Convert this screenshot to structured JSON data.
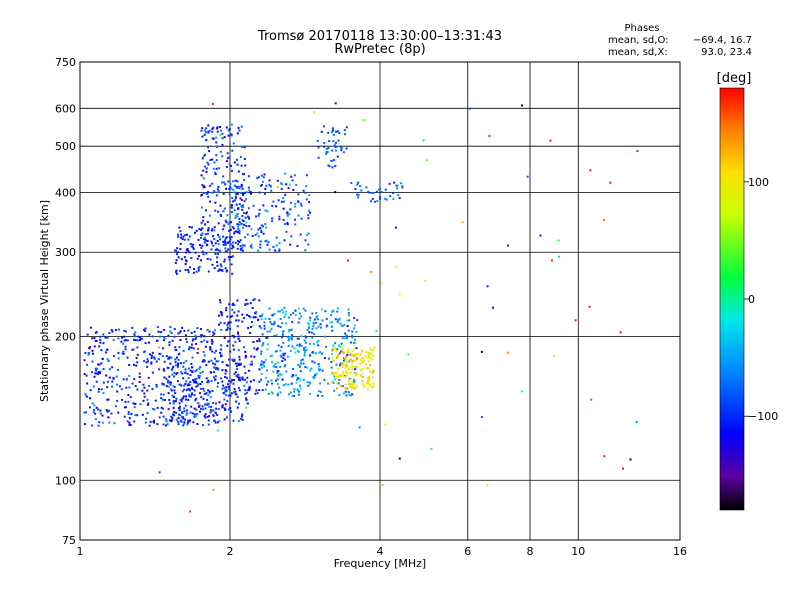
{
  "chart_data": {
    "type": "scatter",
    "title": "Tromsø 20170118 13:30:00–13:31:43",
    "subtitle": "RwPretec (8p)",
    "xlabel": "Frequency [MHz]",
    "ylabel": "Stationary phase Virtual Height [km]",
    "x_scale": "log",
    "y_scale": "log",
    "xlim": [
      1,
      16
    ],
    "ylim": [
      75,
      750
    ],
    "x_ticks": [
      1,
      2,
      4,
      6,
      8,
      10,
      16
    ],
    "x_tick_labels": [
      "1",
      "2",
      "4",
      "6",
      "8",
      "10",
      "16"
    ],
    "y_ticks": [
      75,
      100,
      200,
      300,
      400,
      500,
      600,
      750
    ],
    "y_tick_labels": [
      "75",
      "100",
      "200",
      "300",
      "400",
      "500",
      "600",
      "750"
    ],
    "grid": true,
    "phases_header": "Phases",
    "stats": [
      {
        "label": "mean, sd,O:",
        "values": "−69.4, 16.7"
      },
      {
        "label": "mean, sd,X:",
        "values": "93.0, 23.4"
      }
    ],
    "colorbar": {
      "label": "[deg]",
      "range": [
        -180,
        180
      ],
      "ticks": [
        100,
        0,
        -100
      ],
      "tick_labels": [
        "100",
        "0",
        "−100"
      ]
    },
    "clusters": [
      {
        "fmin": 1.02,
        "fmax": 1.9,
        "hmin": 130,
        "hmax": 210,
        "n": 520,
        "phase": -100,
        "spread": 22
      },
      {
        "fmin": 1.5,
        "fmax": 2.2,
        "hmin": 132,
        "hmax": 178,
        "n": 180,
        "phase": -95,
        "spread": 18
      },
      {
        "fmin": 1.55,
        "fmax": 2.05,
        "hmin": 270,
        "hmax": 340,
        "n": 140,
        "phase": -105,
        "spread": 12
      },
      {
        "fmin": 1.75,
        "fmax": 2.15,
        "hmin": 300,
        "hmax": 560,
        "n": 230,
        "phase": -95,
        "spread": 22
      },
      {
        "fmin": 2.0,
        "fmax": 2.9,
        "hmin": 300,
        "hmax": 440,
        "n": 180,
        "phase": -85,
        "spread": 25
      },
      {
        "fmin": 1.9,
        "fmax": 2.3,
        "hmin": 150,
        "hmax": 240,
        "n": 160,
        "phase": -110,
        "spread": 20
      },
      {
        "fmin": 2.3,
        "fmax": 3.6,
        "hmin": 150,
        "hmax": 230,
        "n": 380,
        "phase": -60,
        "spread": 25
      },
      {
        "fmin": 3.2,
        "fmax": 3.9,
        "hmin": 155,
        "hmax": 190,
        "n": 160,
        "phase": 105,
        "spread": 20
      },
      {
        "fmin": 3.0,
        "fmax": 3.45,
        "hmin": 450,
        "hmax": 550,
        "n": 45,
        "phase": -80,
        "spread": 15
      },
      {
        "fmin": 3.5,
        "fmax": 4.45,
        "hmin": 380,
        "hmax": 420,
        "n": 40,
        "phase": -75,
        "spread": 15
      },
      {
        "fmin": 1.4,
        "fmax": 13.5,
        "hmin": 85,
        "hmax": 620,
        "n": 70,
        "phase": 40,
        "spread": 140
      }
    ]
  }
}
